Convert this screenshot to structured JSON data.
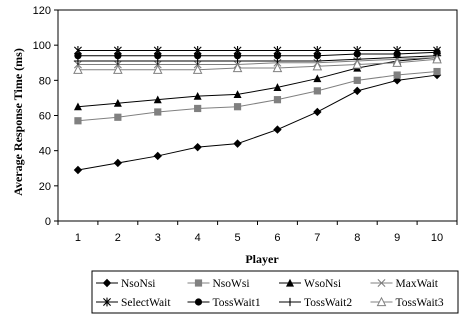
{
  "chart_data": {
    "type": "line",
    "xlabel": "Player",
    "ylabel": "Average Response Time (ms)",
    "x": [
      1,
      2,
      3,
      4,
      5,
      6,
      7,
      8,
      9,
      10
    ],
    "xlim": [
      0.5,
      10.5
    ],
    "ylim": [
      0,
      120
    ],
    "yticks": [
      0,
      20,
      40,
      60,
      80,
      100,
      120
    ],
    "grid": false,
    "legend_position": "bottom",
    "series": [
      {
        "name": "NsoNsi",
        "marker": "diamond",
        "color": "#000000",
        "values": [
          29,
          33,
          37,
          42,
          44,
          52,
          62,
          74,
          80,
          83
        ]
      },
      {
        "name": "NsoWsi",
        "marker": "square",
        "color": "#808080",
        "values": [
          57,
          59,
          62,
          64,
          65,
          69,
          74,
          80,
          83,
          85
        ]
      },
      {
        "name": "WsoNsi",
        "marker": "triangle",
        "color": "#000000",
        "values": [
          65,
          67,
          69,
          71,
          72,
          76,
          81,
          87,
          91,
          93
        ]
      },
      {
        "name": "MaxWait",
        "marker": "x",
        "color": "#808080",
        "values": [
          89,
          89,
          89,
          89,
          89,
          90,
          90,
          91,
          92,
          93
        ]
      },
      {
        "name": "SelectWait",
        "marker": "asterisk",
        "color": "#000000",
        "values": [
          97,
          97,
          97,
          97,
          97,
          97,
          97,
          97,
          97,
          97
        ]
      },
      {
        "name": "TossWait1",
        "marker": "circle",
        "color": "#000000",
        "values": [
          94,
          94,
          94,
          94,
          94,
          94,
          94,
          95,
          95,
          96
        ]
      },
      {
        "name": "TossWait2",
        "marker": "plus",
        "color": "#000000",
        "values": [
          91,
          91,
          91,
          91,
          91,
          91,
          91,
          92,
          93,
          94
        ]
      },
      {
        "name": "TossWait3",
        "marker": "triangle-open",
        "color": "#808080",
        "values": [
          86,
          86,
          86,
          86,
          87,
          87,
          88,
          89,
          90,
          92
        ]
      }
    ]
  }
}
